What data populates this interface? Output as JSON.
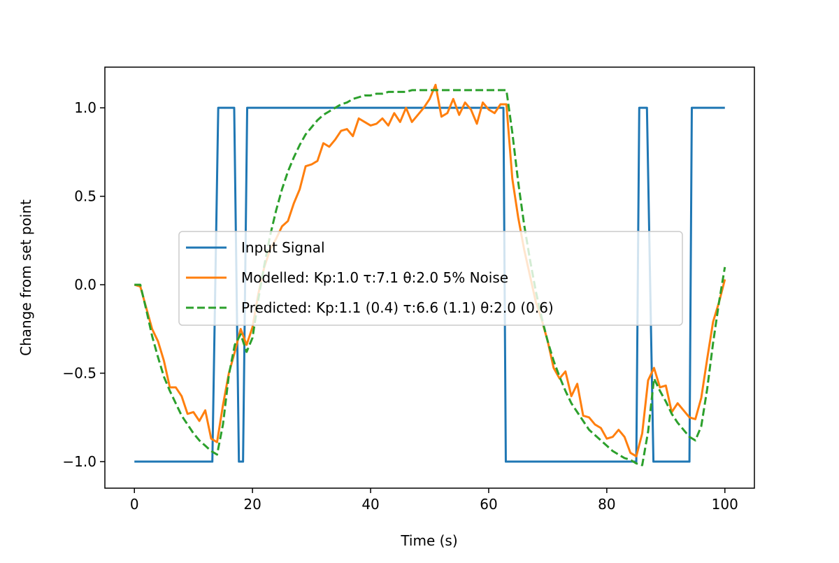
{
  "chart_data": {
    "type": "line",
    "title": "",
    "xlabel": "Time (s)",
    "ylabel": "Change from set point",
    "xlim": [
      -5,
      105
    ],
    "ylim": [
      -1.15,
      1.23
    ],
    "xticks": [
      0,
      20,
      40,
      60,
      80,
      100
    ],
    "xtick_labels": [
      "0",
      "20",
      "40",
      "60",
      "80",
      "100"
    ],
    "yticks": [
      -1.0,
      -0.5,
      0.0,
      0.5,
      1.0
    ],
    "ytick_labels": [
      "−1.0",
      "−0.5",
      "0.0",
      "0.5",
      "1.0"
    ],
    "grid": false,
    "legend_position": "center",
    "series": [
      {
        "name": "Input Signal",
        "color": "#1f77b4",
        "style": "solid",
        "x": [
          0,
          13.2,
          14.2,
          16.2,
          16.9,
          17.7,
          18.4,
          19.1,
          19.4,
          62.5,
          62.9,
          85,
          85.5,
          86.4,
          86.8,
          87.9,
          88.3,
          94,
          94.4,
          95.2,
          95.6,
          100
        ],
        "y": [
          -1,
          -1,
          1,
          1,
          1,
          -1,
          -1,
          1,
          1,
          1,
          -1,
          -1,
          1,
          1,
          1,
          -1,
          -1,
          -1,
          1,
          1,
          1,
          1
        ]
      },
      {
        "name": "Modelled: Kp:1.0 τ:7.1 θ:2.0  5% Noise",
        "color": "#ff7f0e",
        "style": "solid",
        "x": [
          0,
          1,
          2,
          3,
          4,
          5,
          6,
          7,
          8,
          9,
          10,
          11,
          12,
          13,
          14,
          15,
          16,
          17,
          18,
          19,
          20,
          21,
          22,
          23,
          24,
          25,
          26,
          27,
          28,
          29,
          30,
          31,
          32,
          33,
          34,
          35,
          36,
          37,
          38,
          39,
          40,
          41,
          42,
          43,
          44,
          45,
          46,
          47,
          48,
          49,
          50,
          51,
          52,
          53,
          54,
          55,
          56,
          57,
          58,
          59,
          60,
          61,
          62,
          63,
          64,
          65,
          66,
          67,
          68,
          69,
          70,
          71,
          72,
          73,
          74,
          75,
          76,
          77,
          78,
          79,
          80,
          81,
          82,
          83,
          84,
          85,
          86,
          87,
          88,
          89,
          90,
          91,
          92,
          93,
          94,
          95,
          96,
          97,
          98,
          99,
          100
        ],
        "y": [
          0,
          -0.01,
          -0.13,
          -0.25,
          -0.32,
          -0.43,
          -0.58,
          -0.58,
          -0.63,
          -0.73,
          -0.72,
          -0.77,
          -0.71,
          -0.87,
          -0.89,
          -0.68,
          -0.5,
          -0.38,
          -0.25,
          -0.34,
          -0.24,
          -0.05,
          0.1,
          0.2,
          0.26,
          0.33,
          0.36,
          0.46,
          0.54,
          0.67,
          0.68,
          0.7,
          0.8,
          0.78,
          0.82,
          0.87,
          0.88,
          0.84,
          0.94,
          0.92,
          0.9,
          0.91,
          0.94,
          0.9,
          0.97,
          0.92,
          1.0,
          0.92,
          0.96,
          1.0,
          1.05,
          1.13,
          0.95,
          0.97,
          1.05,
          0.96,
          1.03,
          0.99,
          0.91,
          1.03,
          0.99,
          0.97,
          1.02,
          1.02,
          0.6,
          0.38,
          0.2,
          0.05,
          -0.1,
          -0.2,
          -0.32,
          -0.47,
          -0.53,
          -0.49,
          -0.63,
          -0.56,
          -0.74,
          -0.75,
          -0.79,
          -0.81,
          -0.87,
          -0.86,
          -0.82,
          -0.86,
          -0.95,
          -0.97,
          -0.84,
          -0.54,
          -0.47,
          -0.58,
          -0.57,
          -0.72,
          -0.67,
          -0.71,
          -0.75,
          -0.76,
          -0.64,
          -0.42,
          -0.21,
          -0.1,
          0.03
        ]
      },
      {
        "name": "Predicted: Kp:1.1 (0.4) τ:6.6 (1.1) θ:2.0 (0.6)",
        "color": "#2ca02c",
        "style": "dashed",
        "x": [
          0,
          1,
          2,
          3,
          4,
          5,
          6,
          7,
          8,
          9,
          10,
          11,
          12,
          13,
          14,
          15,
          16,
          17,
          18,
          19,
          20,
          21,
          22,
          23,
          24,
          25,
          26,
          27,
          28,
          29,
          30,
          31,
          32,
          33,
          34,
          35,
          36,
          37,
          38,
          39,
          40,
          41,
          42,
          43,
          44,
          45,
          46,
          47,
          48,
          49,
          50,
          51,
          52,
          53,
          54,
          55,
          56,
          57,
          58,
          59,
          60,
          61,
          62,
          63,
          64,
          65,
          66,
          67,
          68,
          69,
          70,
          71,
          72,
          73,
          74,
          75,
          76,
          77,
          78,
          79,
          80,
          81,
          82,
          83,
          84,
          85,
          86,
          87,
          88,
          89,
          90,
          91,
          92,
          93,
          94,
          95,
          96,
          97,
          98,
          99,
          100
        ],
        "y": [
          0,
          0,
          -0.14,
          -0.29,
          -0.41,
          -0.52,
          -0.6,
          -0.67,
          -0.74,
          -0.79,
          -0.84,
          -0.88,
          -0.91,
          -0.94,
          -0.96,
          -0.79,
          -0.51,
          -0.34,
          -0.28,
          -0.38,
          -0.3,
          -0.08,
          0.11,
          0.28,
          0.42,
          0.54,
          0.64,
          0.72,
          0.79,
          0.85,
          0.89,
          0.93,
          0.96,
          0.98,
          1.0,
          1.02,
          1.03,
          1.05,
          1.06,
          1.07,
          1.07,
          1.08,
          1.08,
          1.09,
          1.09,
          1.09,
          1.09,
          1.1,
          1.1,
          1.1,
          1.1,
          1.1,
          1.1,
          1.1,
          1.1,
          1.1,
          1.1,
          1.1,
          1.1,
          1.1,
          1.1,
          1.1,
          1.1,
          1.1,
          0.86,
          0.58,
          0.34,
          0.14,
          -0.04,
          -0.19,
          -0.32,
          -0.43,
          -0.52,
          -0.6,
          -0.67,
          -0.72,
          -0.77,
          -0.82,
          -0.85,
          -0.88,
          -0.91,
          -0.94,
          -0.96,
          -0.98,
          -0.99,
          -1.01,
          -1.02,
          -0.83,
          -0.53,
          -0.6,
          -0.66,
          -0.73,
          -0.78,
          -0.82,
          -0.86,
          -0.88,
          -0.8,
          -0.59,
          -0.33,
          -0.1,
          0.1
        ]
      }
    ]
  }
}
